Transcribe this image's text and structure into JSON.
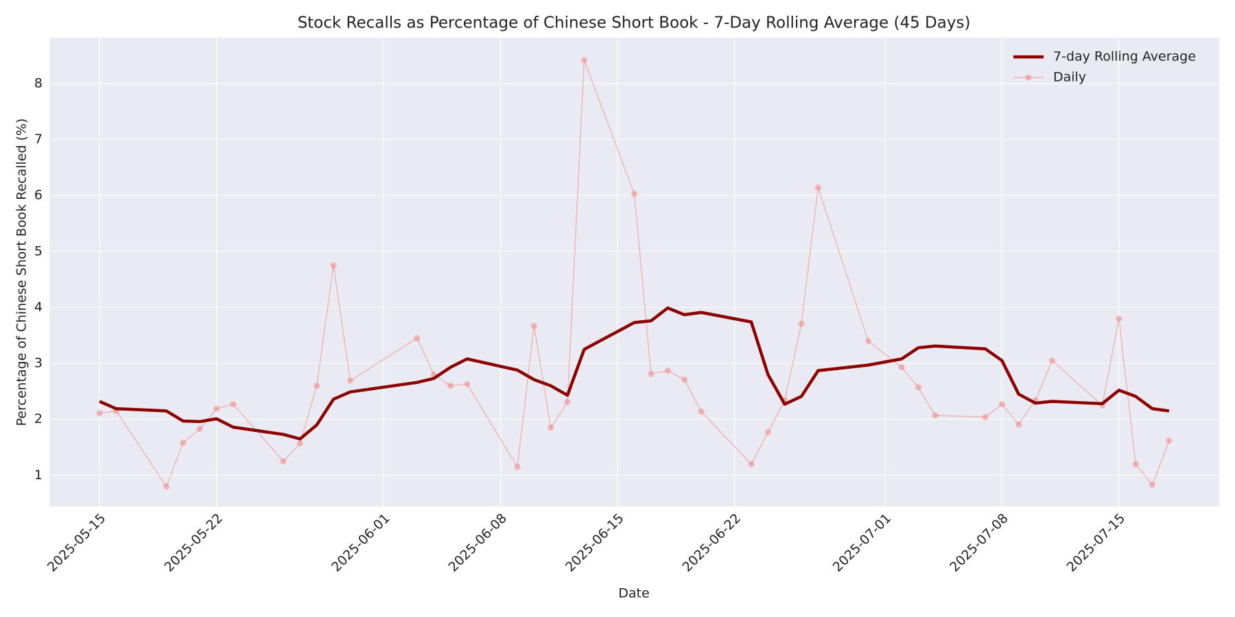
{
  "chart_data": {
    "type": "line",
    "title": "Stock Recalls as Percentage of Chinese Short Book - 7-Day Rolling Average (45 Days)",
    "x_label": "Date",
    "y_label": "Percentage of Chinese Short Book Recalled (%)",
    "x": [
      "2025-05-15",
      "2025-05-16",
      "2025-05-19",
      "2025-05-20",
      "2025-05-21",
      "2025-05-22",
      "2025-05-23",
      "2025-05-26",
      "2025-05-27",
      "2025-05-28",
      "2025-05-29",
      "2025-05-30",
      "2025-06-03",
      "2025-06-04",
      "2025-06-05",
      "2025-06-06",
      "2025-06-09",
      "2025-06-10",
      "2025-06-11",
      "2025-06-12",
      "2025-06-13",
      "2025-06-16",
      "2025-06-17",
      "2025-06-18",
      "2025-06-19",
      "2025-06-20",
      "2025-06-23",
      "2025-06-24",
      "2025-06-25",
      "2025-06-26",
      "2025-06-27",
      "2025-06-30",
      "2025-07-02",
      "2025-07-03",
      "2025-07-04",
      "2025-07-07",
      "2025-07-08",
      "2025-07-09",
      "2025-07-10",
      "2025-07-11",
      "2025-07-14",
      "2025-07-15",
      "2025-07-16",
      "2025-07-17",
      "2025-07-18"
    ],
    "series": [
      {
        "name": "7-day Rolling Average",
        "color": "#8b0000",
        "line_width": 4.5,
        "markers": false,
        "values": [
          2.32,
          2.19,
          2.15,
          1.97,
          1.96,
          2.01,
          1.86,
          1.73,
          1.65,
          1.9,
          2.36,
          2.49,
          2.66,
          2.73,
          2.93,
          3.08,
          2.88,
          2.71,
          2.6,
          2.43,
          3.25,
          3.73,
          3.76,
          3.99,
          3.87,
          3.91,
          3.74,
          2.8,
          2.27,
          2.41,
          2.87,
          2.97,
          3.08,
          3.28,
          3.31,
          3.26,
          3.05,
          2.45,
          2.29,
          2.32,
          2.28,
          2.52,
          2.41,
          2.19,
          2.15
        ]
      },
      {
        "name": "Daily",
        "color": "#f08080",
        "alpha": 0.5,
        "line_width": 1.5,
        "markers": true,
        "values": [
          2.11,
          2.15,
          0.8,
          1.58,
          1.83,
          2.19,
          2.27,
          1.25,
          1.57,
          2.6,
          4.75,
          2.69,
          3.45,
          2.8,
          2.6,
          2.63,
          1.15,
          3.67,
          1.85,
          2.31,
          8.42,
          6.03,
          2.81,
          2.87,
          2.71,
          2.14,
          1.2,
          1.77,
          2.34,
          3.71,
          6.14,
          3.4,
          2.93,
          2.57,
          2.07,
          2.04,
          2.27,
          1.91,
          2.34,
          3.05,
          2.25,
          3.8,
          1.2,
          0.83,
          1.62
        ]
      }
    ],
    "xlim": [
      "2025-05-12",
      "2025-07-21"
    ],
    "xticks": [
      "2025-05-15",
      "2025-05-22",
      "2025-06-01",
      "2025-06-08",
      "2025-06-15",
      "2025-06-22",
      "2025-07-01",
      "2025-07-08",
      "2025-07-15"
    ],
    "ylim": [
      0.44,
      8.82
    ],
    "yticks": [
      1,
      2,
      3,
      4,
      5,
      6,
      7,
      8
    ],
    "grid": true,
    "legend": "upper right"
  }
}
